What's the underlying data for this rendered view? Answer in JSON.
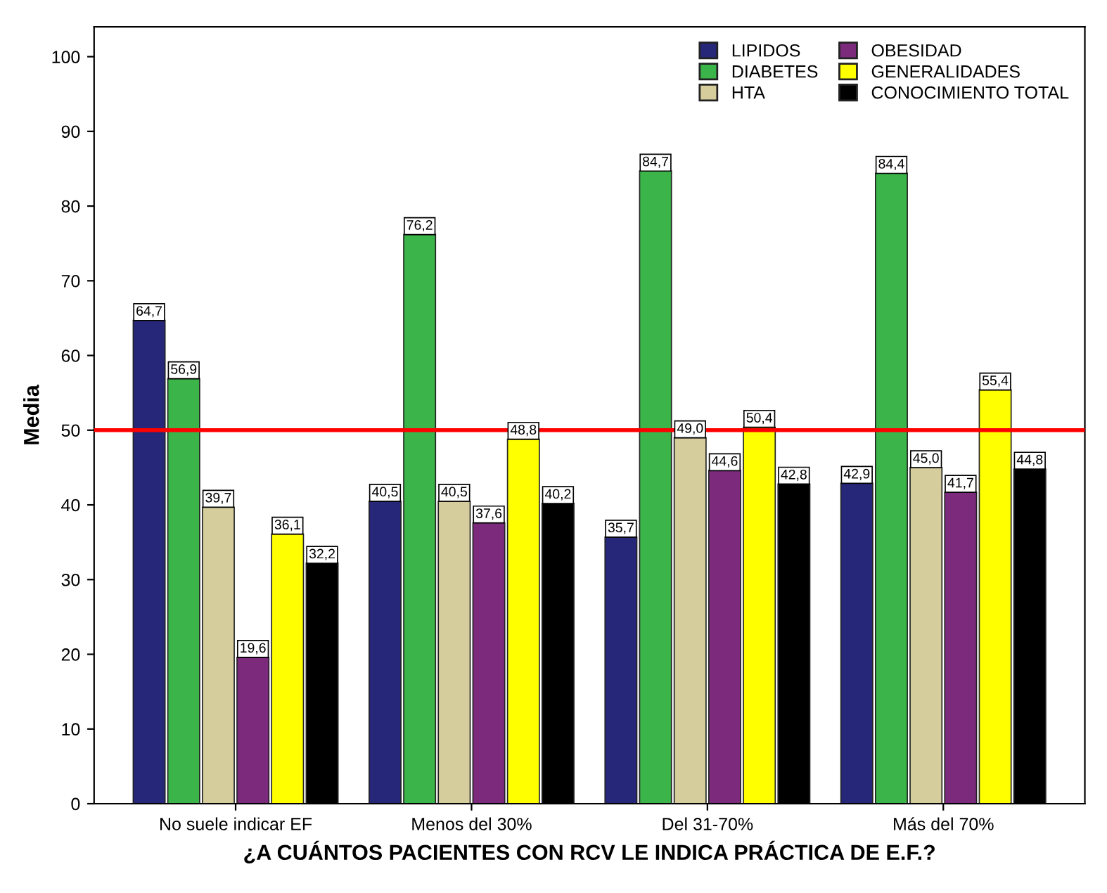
{
  "chart_data": {
    "type": "bar",
    "xlabel": "¿A CUÁNTOS PACIENTES CON RCV LE INDICA PRÁCTICA DE E.F.?",
    "ylabel": "Media",
    "categories": [
      "No suele indicar EF",
      "Menos del 30%",
      "Del 31-70%",
      "Más del 70%"
    ],
    "series": [
      {
        "name": "LIPIDOS",
        "color": "#27277a",
        "values": [
          64.7,
          40.5,
          35.7,
          42.9
        ],
        "value_labels": [
          "64,7",
          "40,5",
          "35,7",
          "42,9"
        ]
      },
      {
        "name": "DIABETES",
        "color": "#3bb54a",
        "values": [
          56.9,
          76.2,
          84.7,
          84.4
        ],
        "value_labels": [
          "56,9",
          "76,2",
          "84,7",
          "84,4"
        ]
      },
      {
        "name": "HTA",
        "color": "#d5cd9c",
        "values": [
          39.7,
          40.5,
          49.0,
          45.0
        ],
        "value_labels": [
          "39,7",
          "40,5",
          "49,0",
          "45,0"
        ]
      },
      {
        "name": "OBESIDAD",
        "color": "#7c2a7c",
        "values": [
          19.6,
          37.6,
          44.6,
          41.7
        ],
        "value_labels": [
          "19,6",
          "37,6",
          "44,6",
          "41,7"
        ]
      },
      {
        "name": "GENERALIDADES",
        "color": "#ffff00",
        "values": [
          36.1,
          48.8,
          50.4,
          55.4
        ],
        "value_labels": [
          "36,1",
          "48,8",
          "50,4",
          "55,4"
        ]
      },
      {
        "name": "CONOCIMIENTO TOTAL",
        "color": "#000000",
        "values": [
          32.2,
          40.2,
          42.8,
          44.8
        ],
        "value_labels": [
          "32,2",
          "40,2",
          "42,8",
          "44,8"
        ]
      }
    ],
    "ylim": [
      0,
      104
    ],
    "yticks": [
      0,
      10,
      20,
      30,
      40,
      50,
      60,
      70,
      80,
      90,
      100
    ],
    "ref_lines": [
      {
        "axis": "y",
        "value": 50,
        "color": "#ff0000"
      }
    ],
    "grid": false,
    "legend": "top right"
  }
}
